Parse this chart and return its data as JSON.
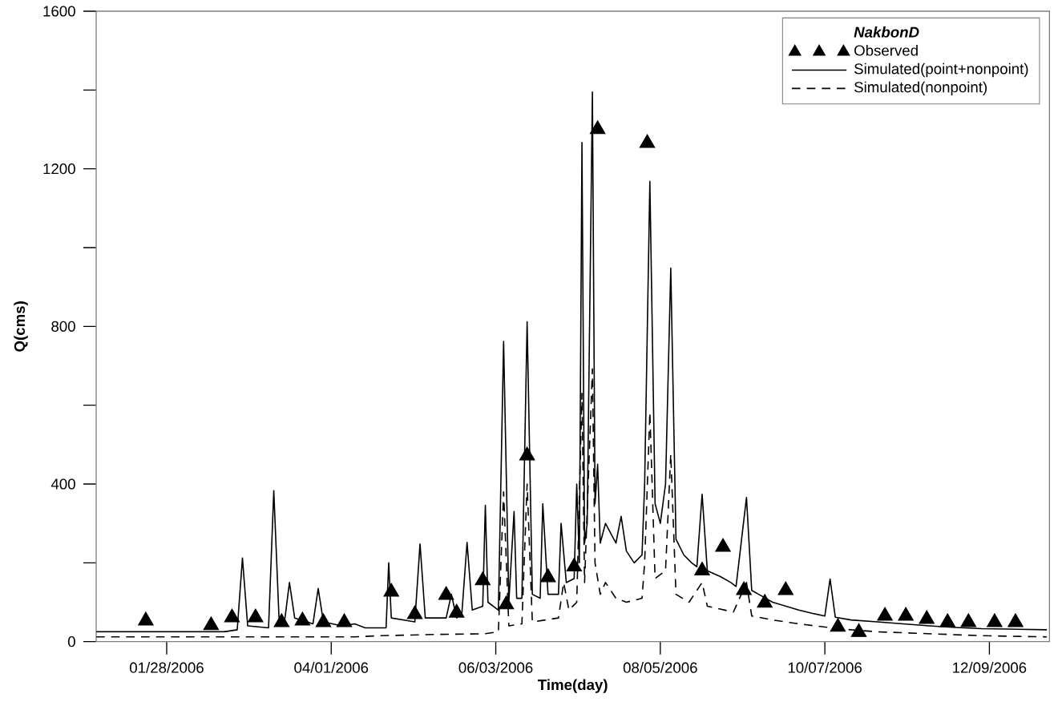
{
  "chart_data": {
    "type": "line",
    "xlabel": "Time(day)",
    "ylabel": "Q(cms)",
    "legend_title": "NakbonD",
    "legend": "top right",
    "grid": false,
    "xlim": [
      "2006-01-01",
      "2007-01-01"
    ],
    "xticks": [
      {
        "value": "2006-01-28",
        "label": "01/28/2006"
      },
      {
        "value": "2006-04-01",
        "label": "04/01/2006"
      },
      {
        "value": "2006-06-03",
        "label": "06/03/2006"
      },
      {
        "value": "2006-08-05",
        "label": "08/05/2006"
      },
      {
        "value": "2006-10-07",
        "label": "10/07/2006"
      },
      {
        "value": "2006-12-09",
        "label": "12/09/2006"
      }
    ],
    "ylim": [
      0,
      1600
    ],
    "yticks": [
      0,
      {
        "value": 200,
        "label": null
      },
      400,
      {
        "value": 600,
        "label": null
      },
      800,
      {
        "value": 1000,
        "label": null
      },
      1200,
      {
        "value": 1400,
        "label": null
      },
      1600
    ],
    "series": [
      {
        "name": "Observed",
        "type": "scatter",
        "marker": "triangle",
        "color": "#000000",
        "x": [
          "2006-01-20",
          "2006-02-14",
          "2006-02-22",
          "2006-03-03",
          "2006-03-13",
          "2006-03-21",
          "2006-03-29",
          "2006-04-06",
          "2006-04-24",
          "2006-05-03",
          "2006-05-15",
          "2006-05-19",
          "2006-05-29",
          "2006-06-07",
          "2006-06-15",
          "2006-06-23",
          "2006-07-03",
          "2006-07-12",
          "2006-07-31",
          "2006-08-21",
          "2006-08-29",
          "2006-09-06",
          "2006-09-14",
          "2006-09-22",
          "2006-10-12",
          "2006-10-20",
          "2006-10-30",
          "2006-11-07",
          "2006-11-15",
          "2006-11-23",
          "2006-12-01",
          "2006-12-11",
          "2006-12-19"
        ],
        "values": [
          53,
          41,
          61,
          61,
          49,
          53,
          49,
          49,
          126,
          69,
          118,
          73,
          155,
          94,
          472,
          163,
          190,
          1300,
          1265,
          180,
          240,
          130,
          98,
          130,
          37,
          24,
          65,
          65,
          57,
          49,
          49,
          49,
          49
        ]
      },
      {
        "name": "Simulated(point+nonpoint)",
        "line_style": "solid",
        "color": "#000000",
        "x": [
          "2006-01-01",
          "2006-02-19",
          "2006-02-24",
          "2006-02-26",
          "2006-02-28",
          "2006-03-08",
          "2006-03-10",
          "2006-03-12",
          "2006-03-14",
          "2006-03-16",
          "2006-03-18",
          "2006-03-25",
          "2006-03-27",
          "2006-03-29",
          "2006-04-05",
          "2006-04-10",
          "2006-04-14",
          "2006-04-22",
          "2006-04-23",
          "2006-04-24",
          "2006-05-03",
          "2006-05-05",
          "2006-05-07",
          "2006-05-15",
          "2006-05-17",
          "2006-05-19",
          "2006-05-21",
          "2006-05-23",
          "2006-05-25",
          "2006-05-29",
          "2006-05-30",
          "2006-05-31",
          "2006-06-04",
          "2006-06-06",
          "2006-06-08",
          "2006-06-10",
          "2006-06-11",
          "2006-06-13",
          "2006-06-15",
          "2006-06-17",
          "2006-06-20",
          "2006-06-21",
          "2006-06-23",
          "2006-06-27",
          "2006-06-28",
          "2006-06-30",
          "2006-07-03",
          "2006-07-04",
          "2006-07-05",
          "2006-07-06",
          "2006-07-07",
          "2006-07-08",
          "2006-07-10",
          "2006-07-11",
          "2006-07-12",
          "2006-07-13",
          "2006-07-15",
          "2006-07-19",
          "2006-07-21",
          "2006-07-23",
          "2006-07-26",
          "2006-07-29",
          "2006-07-30",
          "2006-08-01",
          "2006-08-03",
          "2006-08-05",
          "2006-08-07",
          "2006-08-09",
          "2006-08-11",
          "2006-08-14",
          "2006-08-17",
          "2006-08-19",
          "2006-08-21",
          "2006-08-23",
          "2006-08-28",
          "2006-09-01",
          "2006-09-03",
          "2006-09-07",
          "2006-09-09",
          "2006-09-13",
          "2006-09-17",
          "2006-09-22",
          "2006-09-27",
          "2006-10-02",
          "2006-10-07",
          "2006-10-09",
          "2006-10-11",
          "2006-10-17",
          "2006-10-27",
          "2006-11-06",
          "2006-11-16",
          "2006-11-26",
          "2006-12-06",
          "2006-12-16",
          "2006-12-31"
        ],
        "values": [
          25,
          25,
          30,
          212,
          40,
          35,
          383,
          60,
          45,
          150,
          60,
          45,
          135,
          50,
          40,
          45,
          35,
          35,
          200,
          60,
          50,
          248,
          60,
          60,
          120,
          60,
          70,
          252,
          80,
          90,
          346,
          100,
          80,
          762,
          100,
          330,
          110,
          110,
          812,
          120,
          110,
          350,
          120,
          120,
          300,
          150,
          160,
          400,
          200,
          1267,
          250,
          300,
          1395,
          350,
          450,
          250,
          300,
          250,
          318,
          230,
          200,
          220,
          400,
          1168,
          350,
          300,
          400,
          948,
          260,
          220,
          200,
          190,
          374,
          180,
          165,
          150,
          140,
          366,
          130,
          115,
          100,
          90,
          80,
          72,
          65,
          159,
          62,
          55,
          50,
          45,
          40,
          36,
          33,
          32,
          30
        ]
      },
      {
        "name": "Simulated(nonpoint)",
        "line_style": "dashed",
        "color": "#000000",
        "x": [
          "2006-01-01",
          "2006-04-10",
          "2006-04-20",
          "2006-05-10",
          "2006-05-30",
          "2006-06-04",
          "2006-06-06",
          "2006-06-08",
          "2006-06-13",
          "2006-06-15",
          "2006-06-17",
          "2006-06-27",
          "2006-06-29",
          "2006-07-01",
          "2006-07-04",
          "2006-07-06",
          "2006-07-07",
          "2006-07-10",
          "2006-07-11",
          "2006-07-13",
          "2006-07-15",
          "2006-07-19",
          "2006-07-23",
          "2006-07-29",
          "2006-07-30",
          "2006-08-01",
          "2006-08-03",
          "2006-08-07",
          "2006-08-09",
          "2006-08-11",
          "2006-08-16",
          "2006-08-21",
          "2006-08-23",
          "2006-09-02",
          "2006-09-07",
          "2006-09-09",
          "2006-09-17",
          "2006-09-27",
          "2006-10-07",
          "2006-10-17",
          "2006-10-27",
          "2006-11-16",
          "2006-12-06",
          "2006-12-31"
        ],
        "values": [
          12,
          12,
          15,
          18,
          20,
          25,
          380,
          40,
          45,
          400,
          50,
          60,
          150,
          80,
          100,
          630,
          150,
          692,
          200,
          120,
          150,
          110,
          100,
          110,
          200,
          582,
          160,
          180,
          476,
          120,
          100,
          150,
          90,
          75,
          150,
          65,
          55,
          45,
          37,
          30,
          25,
          20,
          15,
          12
        ]
      }
    ]
  }
}
